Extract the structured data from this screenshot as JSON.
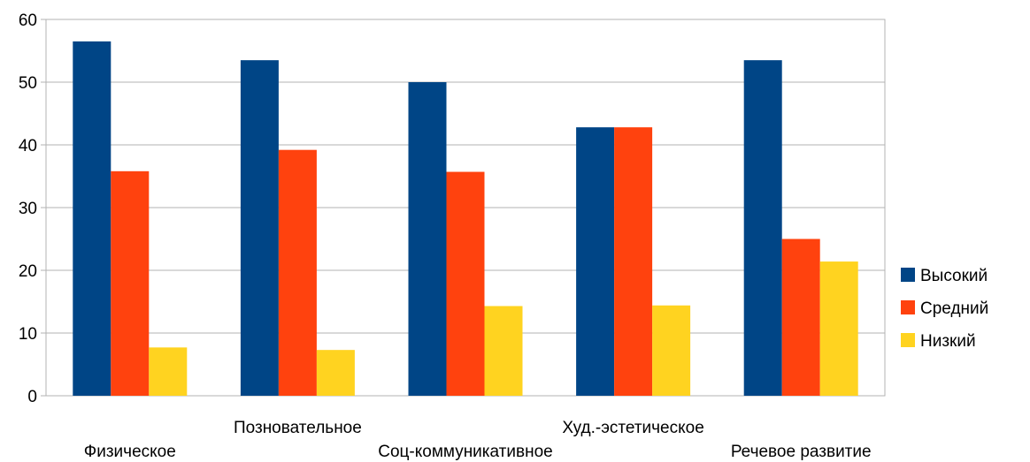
{
  "chart_data": {
    "type": "bar",
    "title": "",
    "xlabel": "",
    "ylabel": "",
    "categories": [
      "Физическое",
      "Позновательное",
      "Соц-коммуникативное",
      "Худ.-эстетическое",
      "Речевое развитие"
    ],
    "series": [
      {
        "name": "Высокий",
        "color": "#004586",
        "values": [
          56.5,
          53.5,
          50,
          42.8,
          53.5
        ]
      },
      {
        "name": "Средний",
        "color": "#ff420e",
        "values": [
          35.8,
          39.2,
          35.7,
          42.8,
          25
        ]
      },
      {
        "name": "Низкий",
        "color": "#ffd320",
        "values": [
          7.7,
          7.3,
          14.3,
          14.4,
          21.4
        ]
      }
    ],
    "ylim": [
      0,
      60
    ],
    "yticks": [
      0,
      10,
      20,
      30,
      40,
      50,
      60
    ],
    "grid": true,
    "legend_position": "right"
  }
}
